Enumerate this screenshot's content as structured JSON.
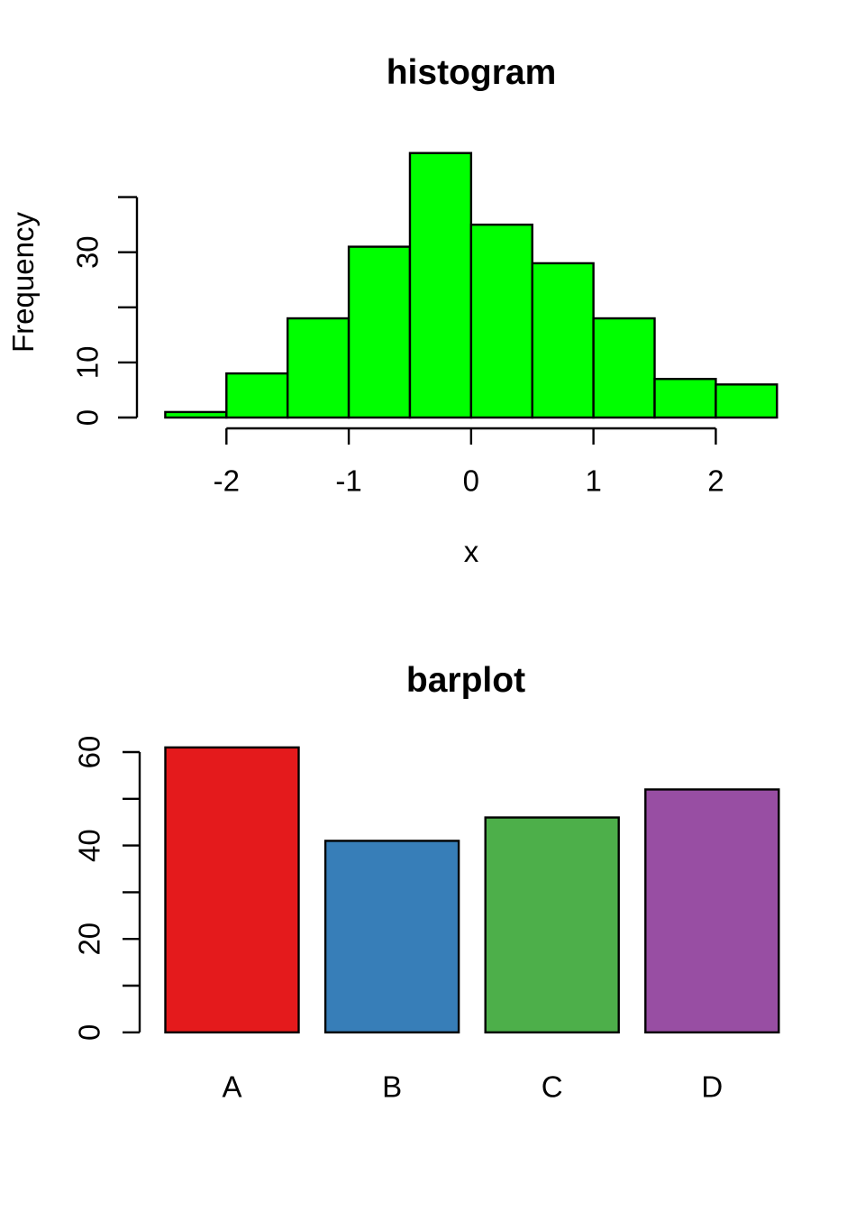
{
  "figure": {
    "background": "#FFFFFF",
    "text_color": "#000000"
  },
  "chart_data": [
    {
      "type": "histogram",
      "title": "histogram",
      "xlabel": "x",
      "ylabel": "Frequency",
      "bin_start": -2.5,
      "bin_width": 0.5,
      "counts": [
        1,
        8,
        18,
        31,
        48,
        35,
        28,
        18,
        7,
        6
      ],
      "bar_fill": "#00FF00",
      "bar_border": "#000000",
      "xlim": [
        -2.5,
        2.5
      ],
      "ylim": [
        0,
        48
      ],
      "grid": "off",
      "x_ticks": [
        {
          "value": -2,
          "label": "-2"
        },
        {
          "value": -1,
          "label": "-1"
        },
        {
          "value": 0,
          "label": "0"
        },
        {
          "value": 1,
          "label": "1"
        },
        {
          "value": 2,
          "label": "2"
        }
      ],
      "y_ticks": [
        {
          "value": 0,
          "label": "0"
        },
        {
          "value": 10,
          "label": "10"
        },
        {
          "value": 20,
          "label": ""
        },
        {
          "value": 30,
          "label": "30"
        },
        {
          "value": 40,
          "label": ""
        }
      ]
    },
    {
      "type": "bar",
      "title": "barplot",
      "categories": [
        "A",
        "B",
        "C",
        "D"
      ],
      "values": [
        61,
        41,
        46,
        52
      ],
      "bar_colors": [
        "#E41A1C",
        "#377EB8",
        "#4DAF4A",
        "#984EA3"
      ],
      "bar_border": "#000000",
      "ylim": [
        0,
        61
      ],
      "grid": "off",
      "y_ticks": [
        {
          "value": 0,
          "label": "0"
        },
        {
          "value": 10,
          "label": ""
        },
        {
          "value": 20,
          "label": "20"
        },
        {
          "value": 30,
          "label": ""
        },
        {
          "value": 40,
          "label": "40"
        },
        {
          "value": 50,
          "label": ""
        },
        {
          "value": 60,
          "label": "60"
        }
      ]
    }
  ]
}
